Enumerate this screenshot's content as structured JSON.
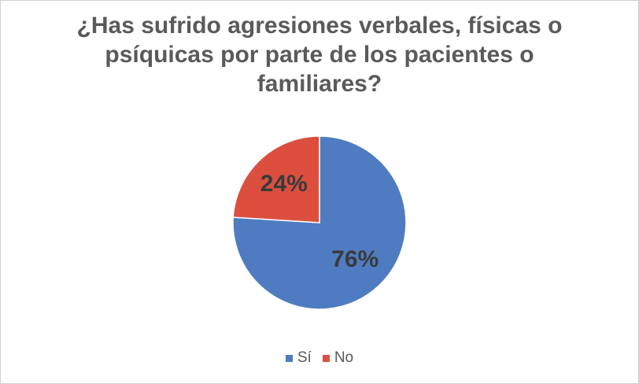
{
  "chart_data": {
    "type": "pie",
    "title": "¿Has sufrido agresiones verbales, físicas o psíquicas por parte de los pacientes o familiares?",
    "categories": [
      "Sí",
      "No"
    ],
    "values": [
      76,
      24
    ],
    "value_labels": [
      "76%",
      "24%"
    ],
    "colors": [
      "#4f7cc1",
      "#dc4f3f"
    ],
    "legend": "bottom"
  }
}
